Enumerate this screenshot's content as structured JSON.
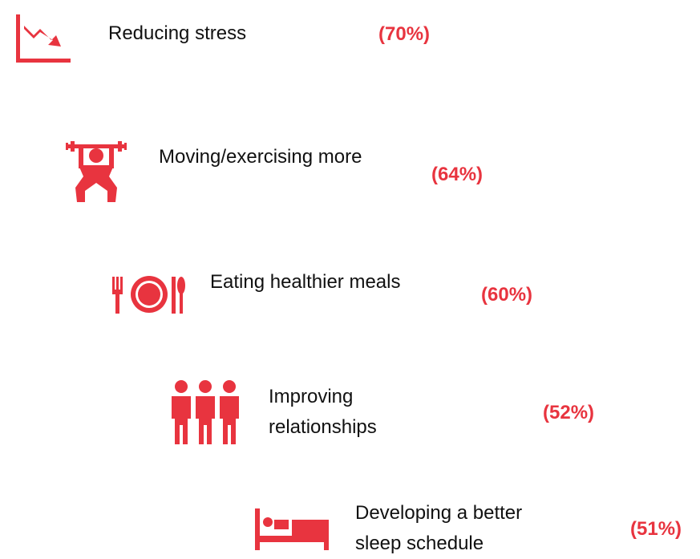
{
  "items": [
    {
      "label": "Reducing stress",
      "percent": "(70%)"
    },
    {
      "label": "Moving/exercising more",
      "percent": "(64%)"
    },
    {
      "label": "Eating healthier meals",
      "percent": "(60%)"
    },
    {
      "label": "Improving relationships",
      "percent": "(52%)"
    },
    {
      "label": "Developing a better sleep schedule",
      "percent": "(51%)"
    }
  ]
}
